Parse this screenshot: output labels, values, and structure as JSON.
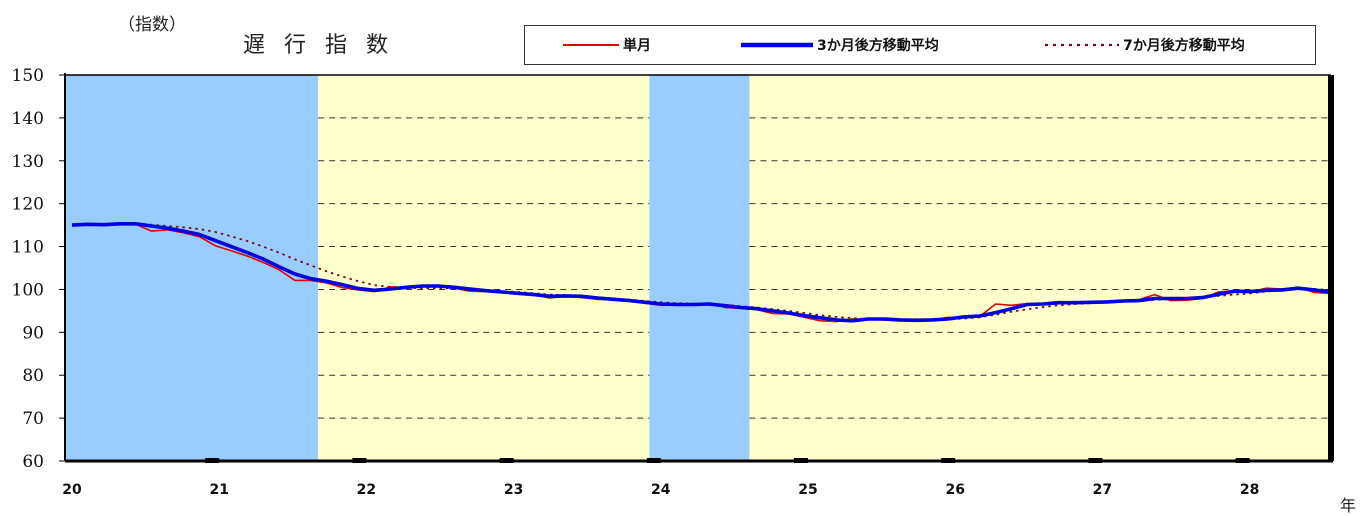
{
  "header": {
    "unit_label": "（指数）",
    "title": "遅 行 指 数"
  },
  "legend": [
    {
      "name": "単月",
      "color": "#e00000",
      "style": "solid-thin"
    },
    {
      "name": "3か月後方移動平均",
      "color": "#0000e0",
      "style": "solid-thick"
    },
    {
      "name": "7か月後方移動平均",
      "color": "#7a0a1a",
      "style": "dotted"
    }
  ],
  "x_unit": "年",
  "colors": {
    "recession": "#99ccff",
    "expansion": "#ffffcc",
    "single_month": "#e00000",
    "ma3": "#0000e0",
    "ma7": "#7a0a1a"
  },
  "chart_data": {
    "type": "line",
    "x_start_year": 20,
    "ylim": [
      60,
      150
    ],
    "yticks": [
      60,
      70,
      80,
      90,
      100,
      110,
      120,
      130,
      140,
      150
    ],
    "xticks": [
      "20",
      "21",
      "22",
      "23",
      "24",
      "25",
      "26",
      "27",
      "28"
    ],
    "grid": "horizontal-dashed",
    "legend_position": "top",
    "shaded_periods": [
      {
        "type": "recession",
        "from": 20.0,
        "to": 21.72
      },
      {
        "type": "expansion",
        "from": 21.72,
        "to": 23.97
      },
      {
        "type": "recession",
        "from": 23.97,
        "to": 24.65
      },
      {
        "type": "expansion",
        "from": 24.65,
        "to": 28.58
      }
    ],
    "series": [
      {
        "name": "単月",
        "values": [
          115.1,
          115.3,
          115.0,
          115.4,
          115.2,
          113.6,
          113.9,
          113.2,
          112.3,
          110.2,
          109.0,
          107.8,
          106.3,
          104.6,
          102.1,
          102.1,
          101.5,
          100.4,
          99.9,
          99.5,
          100.6,
          100.4,
          100.7,
          100.8,
          100.3,
          99.6,
          99.5,
          99.3,
          98.9,
          98.8,
          98.0,
          98.4,
          98.1,
          97.7,
          97.6,
          97.3,
          96.8,
          96.3,
          96.6,
          96.4,
          96.8,
          95.8,
          95.6,
          95.3,
          94.4,
          94.3,
          93.5,
          92.7,
          92.5,
          93.1,
          93.0,
          92.9,
          92.7,
          93.1,
          92.8,
          93.5,
          93.5,
          93.7,
          96.6,
          96.3,
          96.7,
          96.8,
          97.2,
          96.8,
          97.0,
          97.2,
          97.4,
          97.6,
          98.8,
          97.4,
          97.5,
          97.9,
          99.4,
          99.7,
          99.4,
          100.3,
          100.1,
          100.5,
          99.3,
          99.1
        ],
        "color": "#e00000"
      },
      {
        "name": "3か月後方移動平均",
        "values": [
          115.0,
          115.2,
          115.1,
          115.3,
          115.3,
          114.8,
          114.3,
          113.6,
          112.8,
          111.4,
          110.0,
          108.6,
          107.1,
          105.3,
          103.6,
          102.5,
          101.9,
          101.1,
          100.2,
          99.8,
          100.1,
          100.5,
          100.8,
          100.8,
          100.5,
          100.1,
          99.7,
          99.4,
          99.1,
          98.8,
          98.4,
          98.5,
          98.4,
          98.0,
          97.7,
          97.4,
          97.0,
          96.6,
          96.5,
          96.5,
          96.6,
          96.2,
          95.8,
          95.5,
          95.0,
          94.5,
          93.9,
          93.4,
          92.9,
          92.7,
          93.1,
          93.1,
          92.9,
          92.8,
          92.9,
          93.1,
          93.6,
          93.8,
          94.6,
          95.5,
          96.5,
          96.6,
          96.9,
          96.9,
          97.0,
          97.1,
          97.3,
          97.4,
          97.9,
          97.9,
          97.9,
          98.1,
          98.9,
          99.6,
          99.5,
          99.8,
          99.9,
          100.3,
          99.9,
          99.4
        ],
        "color": "#0000e0"
      },
      {
        "name": "7か月後方移動平均",
        "values": [
          115.0,
          115.1,
          115.1,
          115.2,
          115.2,
          115.1,
          114.8,
          114.5,
          114.1,
          113.4,
          112.4,
          111.3,
          110.0,
          108.6,
          107.0,
          105.6,
          104.2,
          103.0,
          101.9,
          101.0,
          100.6,
          100.4,
          100.3,
          100.3,
          100.3,
          100.1,
          99.9,
          99.6,
          99.4,
          99.1,
          98.8,
          98.7,
          98.5,
          98.2,
          97.9,
          97.6,
          97.3,
          97.0,
          96.8,
          96.7,
          96.6,
          96.4,
          96.1,
          95.8,
          95.4,
          95.0,
          94.5,
          94.0,
          93.6,
          93.3,
          93.1,
          93.0,
          92.9,
          92.9,
          92.9,
          93.0,
          93.2,
          93.5,
          94.1,
          94.8,
          95.4,
          95.9,
          96.3,
          96.6,
          96.8,
          97.0,
          97.1,
          97.3,
          97.6,
          97.7,
          97.9,
          98.1,
          98.5,
          98.8,
          99.1,
          99.5,
          99.8,
          100.1,
          100.1,
          99.9
        ],
        "color": "#7a0a1a"
      }
    ]
  }
}
